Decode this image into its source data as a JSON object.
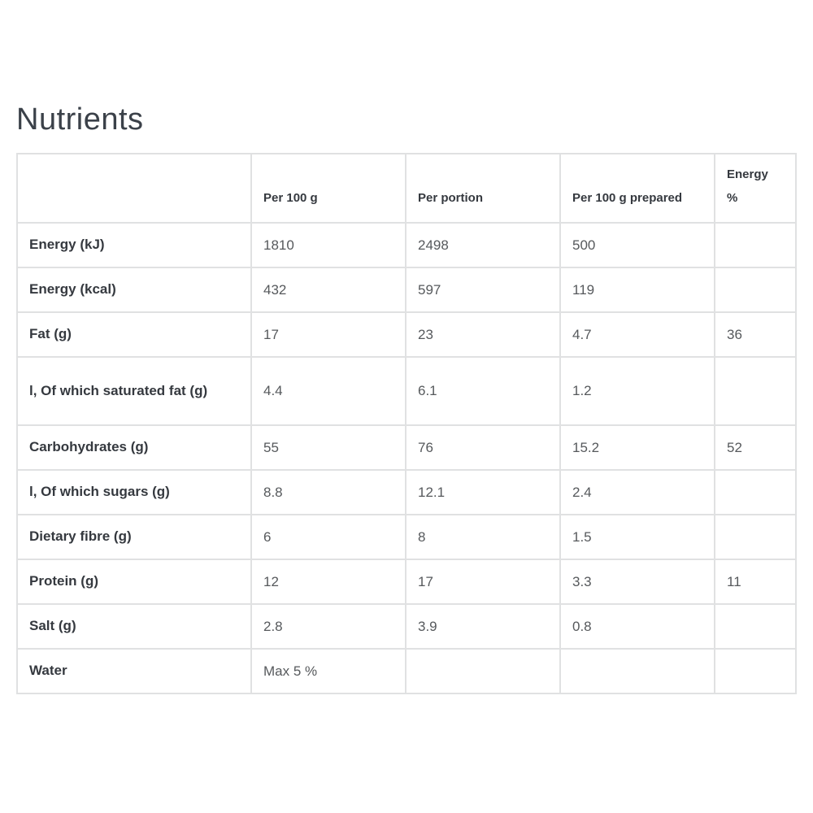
{
  "page": {
    "title": "Nutrients",
    "background_color": "#ffffff"
  },
  "table": {
    "border_color": "#e0e1e2",
    "label_color": "#35393f",
    "value_color": "#56595c",
    "headers": [
      "Per 100 g",
      "Per portion",
      "Per 100 g prepared",
      "Energy %"
    ],
    "rows": [
      {
        "label": "Energy (kJ)",
        "values": [
          "1810",
          "2498",
          "500",
          ""
        ]
      },
      {
        "label": "Energy (kcal)",
        "values": [
          "432",
          "597",
          "119",
          ""
        ]
      },
      {
        "label": "Fat (g)",
        "values": [
          "17",
          "23",
          "4.7",
          "36"
        ]
      },
      {
        "label": "l, Of which saturated fat (g)",
        "values": [
          "4.4",
          "6.1",
          "1.2",
          ""
        ]
      },
      {
        "label": "Carbohydrates (g)",
        "values": [
          "55",
          "76",
          "15.2",
          "52"
        ]
      },
      {
        "label": "l, Of which sugars (g)",
        "values": [
          "8.8",
          "12.1",
          "2.4",
          ""
        ]
      },
      {
        "label": "Dietary fibre (g)",
        "values": [
          "6",
          "8",
          "1.5",
          ""
        ]
      },
      {
        "label": "Protein (g)",
        "values": [
          "12",
          "17",
          "3.3",
          "11"
        ]
      },
      {
        "label": "Salt (g)",
        "values": [
          "2.8",
          "3.9",
          "0.8",
          ""
        ]
      },
      {
        "label": "Water",
        "values": [
          "Max 5 %",
          "",
          "",
          ""
        ]
      }
    ]
  }
}
